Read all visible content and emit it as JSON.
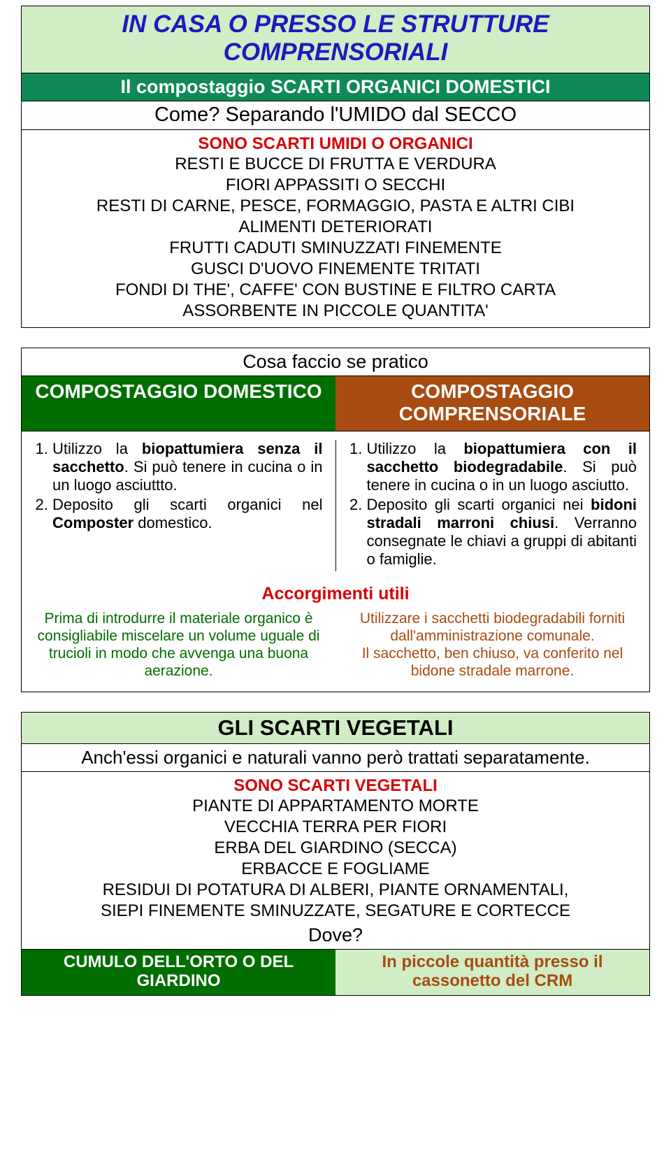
{
  "colors": {
    "light_green_bg": "#d1edc6",
    "teal_bg": "#0f8a56",
    "dark_green": "#006e00",
    "brown": "#a94c12",
    "red": "#d90000",
    "title_blue": "#1b1bbe"
  },
  "section1": {
    "title": "IN CASA O PRESSO LE STRUTTURE COMPRENSORIALI",
    "subtitle": "Il compostaggio SCARTI ORGANICI DOMESTICI",
    "question": "Come? Separando l'UMIDO dal SECCO",
    "red_heading": "SONO SCARTI UMIDI O ORGANICI",
    "items": [
      "RESTI E BUCCE DI FRUTTA E VERDURA",
      "FIORI APPASSITI O SECCHI",
      "RESTI DI CARNE, PESCE, FORMAGGIO, PASTA E ALTRI CIBI",
      "ALIMENTI DETERIORATI",
      "FRUTTI CADUTI SMINUZZATI FINEMENTE",
      "GUSCI D'UOVO FINEMENTE TRITATI",
      "FONDI DI THE', CAFFE' CON BUSTINE E FILTRO CARTA",
      "ASSORBENTE IN PICCOLE QUANTITA'"
    ]
  },
  "section2": {
    "question": "Cosa faccio se pratico",
    "left_header": "COMPOSTAGGIO DOMESTICO",
    "right_header": "COMPOSTAGGIO COMPRENSORIALE",
    "left_html": "<ol><li>Utilizzo la <b>biopattumiera senza il sacchetto</b>. Si può tenere in cucina o in un luogo asciuttto.</li><li>Deposito gli scarti organici nel <b>Composter</b> domestico.</li></ol>",
    "right_html": "<ol><li>Utilizzo la <b>biopattumiera con il sacchetto biodegradabile</b>. Si può tenere in cucina o in un luogo asciutto.</li><li>Deposito gli scarti organici nei <b>bidoni stradali marroni chiusi</b>. Verranno consegnate le chiavi a gruppi di abitanti o famiglie.</li></ol>",
    "accorgimenti_title": "Accorgimenti utili",
    "tip_left": "Prima di introdurre il materiale organico è consigliabile miscelare un volume uguale di trucioli in modo che avvenga una buona aerazione.",
    "tip_right": "Utilizzare i sacchetti biodegradabili forniti dall'amministrazione comunale.\nIl sacchetto, ben chiuso, va conferito nel bidone stradale marrone."
  },
  "section3": {
    "title": "GLI SCARTI VEGETALI",
    "line": "Anch'essi organici e naturali vanno però trattati separatamente.",
    "red_heading": "SONO SCARTI VEGETALI",
    "items": [
      "PIANTE DI APPARTAMENTO MORTE",
      "VECCHIA TERRA PER FIORI",
      "ERBA DEL GIARDINO (SECCA)",
      "ERBACCE E FOGLIAME",
      "RESIDUI DI POTATURA DI ALBERI, PIANTE ORNAMENTALI,",
      "SIEPI FINEMENTE SMINUZZATE, SEGATURE E CORTECCE"
    ],
    "dove": "Dove?",
    "left": "CUMULO DELL'ORTO O DEL GIARDINO",
    "right": "In piccole quantità presso il cassonetto del CRM"
  }
}
